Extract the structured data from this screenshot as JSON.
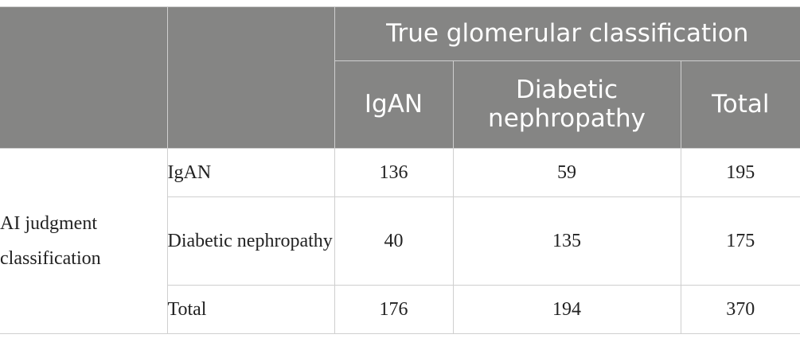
{
  "header": {
    "group_title": "True glomerular classification",
    "columns": [
      "IgAN",
      "Diabetic nephropathy",
      "Total"
    ]
  },
  "row_group_label": "AI judgment classification",
  "rows": [
    {
      "label": "IgAN",
      "values": [
        "136",
        "59",
        "195"
      ]
    },
    {
      "label": "Diabetic nephropathy",
      "values": [
        "40",
        "135",
        "175"
      ]
    },
    {
      "label": "Total",
      "values": [
        "176",
        "194",
        "370"
      ]
    }
  ]
}
